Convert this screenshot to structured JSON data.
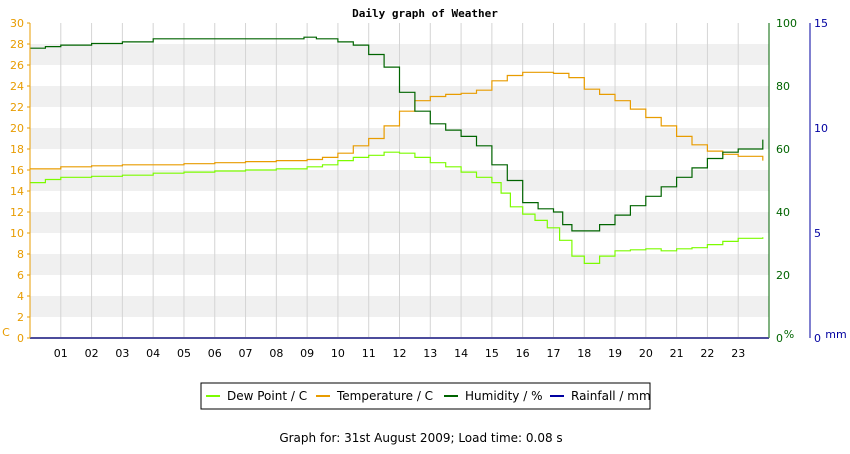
{
  "chart_data": {
    "type": "line",
    "title": "Daily graph of Weather",
    "footer": "Graph for: 31st August 2009; Load time: 0.08 s",
    "x_ticks": [
      "01",
      "02",
      "03",
      "04",
      "05",
      "06",
      "07",
      "08",
      "09",
      "10",
      "11",
      "12",
      "13",
      "14",
      "15",
      "16",
      "17",
      "18",
      "19",
      "20",
      "21",
      "22",
      "23"
    ],
    "x_range_hours": [
      0,
      24
    ],
    "axes": {
      "left": {
        "unit_label": "C",
        "ticks": [
          0,
          2,
          4,
          6,
          8,
          10,
          12,
          14,
          16,
          18,
          20,
          22,
          24,
          26,
          28,
          30
        ],
        "ylim": [
          0,
          30
        ],
        "color": "#e89c00"
      },
      "right1": {
        "unit_label": "%",
        "ticks": [
          0,
          20,
          40,
          60,
          80,
          100
        ],
        "ylim": [
          0,
          100
        ],
        "color": "#006400"
      },
      "right2": {
        "unit_label": "mm",
        "ticks": [
          0,
          5,
          10,
          15
        ],
        "ylim": [
          0,
          15
        ],
        "color": "#0000a0"
      }
    },
    "grid": "horizontal-bands",
    "legend_position": "bottom",
    "series": [
      {
        "name": "Dew Point / C",
        "axis": "left",
        "color": "#7cfc00",
        "x": [
          0,
          0.5,
          1,
          2,
          3,
          4,
          5,
          6,
          7,
          8,
          9,
          9.5,
          10,
          10.5,
          11,
          11.5,
          12,
          12.5,
          13,
          13.5,
          14,
          14.5,
          15,
          15.3,
          15.6,
          16,
          16.4,
          16.8,
          17.2,
          17.6,
          18,
          18.5,
          19,
          19.5,
          20,
          20.5,
          21,
          21.5,
          22,
          22.5,
          23,
          23.8
        ],
        "y": [
          14.8,
          15.1,
          15.3,
          15.4,
          15.5,
          15.7,
          15.8,
          15.9,
          16.0,
          16.1,
          16.3,
          16.5,
          16.9,
          17.2,
          17.4,
          17.7,
          17.6,
          17.2,
          16.7,
          16.3,
          15.8,
          15.3,
          14.8,
          13.8,
          12.5,
          11.8,
          11.2,
          10.5,
          9.3,
          7.8,
          7.1,
          7.8,
          8.3,
          8.4,
          8.5,
          8.3,
          8.5,
          8.6,
          8.9,
          9.2,
          9.5,
          9.6
        ]
      },
      {
        "name": "Temperature / C",
        "axis": "left",
        "color": "#e89c00",
        "x": [
          0,
          1,
          2,
          3,
          4,
          5,
          6,
          7,
          8,
          9,
          9.5,
          10,
          10.5,
          11,
          11.5,
          12,
          12.5,
          13,
          13.5,
          14,
          14.5,
          15,
          15.5,
          16,
          16.5,
          17,
          17.5,
          18,
          18.5,
          19,
          19.5,
          20,
          20.5,
          21,
          21.5,
          22,
          22.5,
          23,
          23.8
        ],
        "y": [
          16.1,
          16.3,
          16.4,
          16.5,
          16.5,
          16.6,
          16.7,
          16.8,
          16.9,
          17.0,
          17.2,
          17.6,
          18.3,
          19.0,
          20.2,
          21.6,
          22.6,
          23.0,
          23.2,
          23.3,
          23.6,
          24.5,
          25.0,
          25.3,
          25.3,
          25.2,
          24.8,
          23.7,
          23.2,
          22.6,
          21.8,
          21.0,
          20.2,
          19.2,
          18.4,
          17.8,
          17.5,
          17.3,
          16.9
        ]
      },
      {
        "name": "Humidity / %",
        "axis": "right1",
        "color": "#006400",
        "x": [
          0,
          0.5,
          1,
          2,
          3,
          4,
          5,
          6,
          7,
          8,
          8.9,
          9.3,
          10,
          10.5,
          11,
          11.5,
          12,
          12.5,
          13,
          13.5,
          14,
          14.5,
          15,
          15.5,
          16,
          16.5,
          17,
          17.3,
          17.6,
          18,
          18.5,
          19,
          19.5,
          20,
          20.5,
          21,
          21.5,
          22,
          22.5,
          23,
          23.8
        ],
        "y": [
          92,
          92.5,
          93,
          93.5,
          94,
          95,
          95,
          95,
          95,
          95,
          95.5,
          95,
          94,
          93,
          90,
          86,
          78,
          72,
          68,
          66,
          64,
          61,
          55,
          50,
          43,
          41,
          40,
          36,
          34,
          34,
          36,
          39,
          42,
          45,
          48,
          51,
          54,
          57,
          59,
          60,
          63
        ]
      },
      {
        "name": "Rainfall / mm",
        "axis": "right2",
        "color": "#0000a0",
        "x": [
          0,
          24
        ],
        "y": [
          0,
          0
        ]
      }
    ]
  }
}
